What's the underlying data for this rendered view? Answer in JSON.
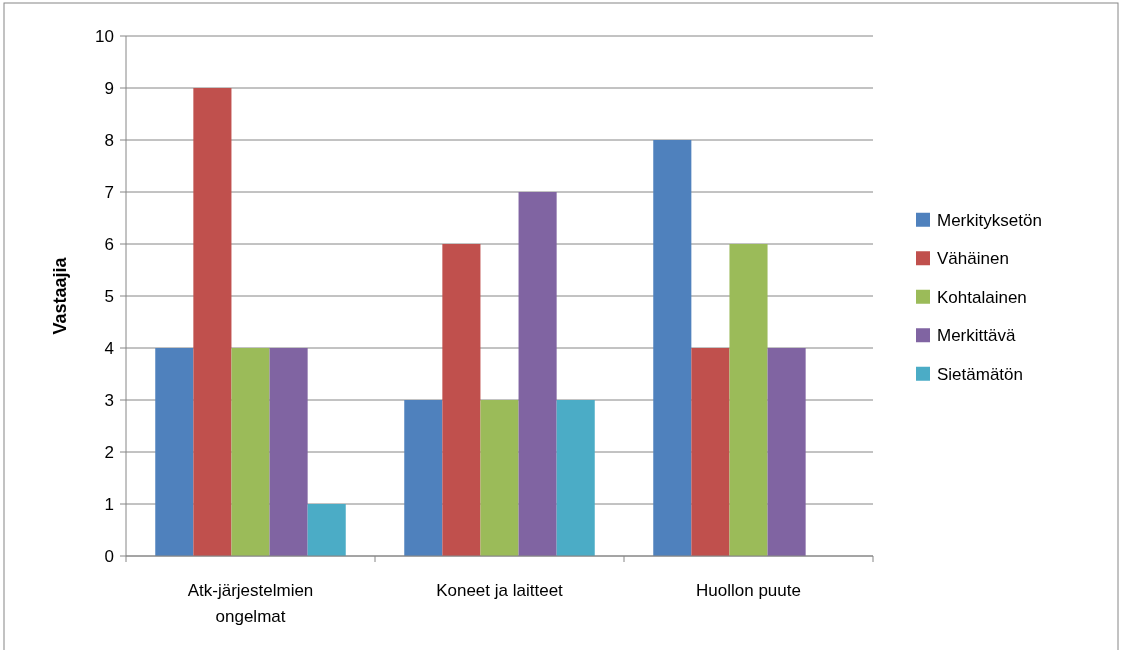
{
  "chart_data": {
    "type": "bar",
    "ylabel": "Vastaajia",
    "categories": [
      "Atk-järjestelmien ongelmat",
      "Koneet ja laitteet",
      "Huollon puute"
    ],
    "series": [
      {
        "name": "Merkityksetön",
        "color": "#4f81bd",
        "values": [
          4,
          3,
          8
        ]
      },
      {
        "name": "Vähäinen",
        "color": "#c0504d",
        "values": [
          9,
          6,
          4
        ]
      },
      {
        "name": "Kohtalainen",
        "color": "#9bbb59",
        "values": [
          4,
          3,
          6
        ]
      },
      {
        "name": "Merkittävä",
        "color": "#8064a2",
        "values": [
          4,
          7,
          4
        ]
      },
      {
        "name": "Sietämätön",
        "color": "#4bacc6",
        "values": [
          1,
          3,
          0
        ]
      }
    ],
    "ylim": [
      0,
      10
    ],
    "yticks": [
      0,
      1,
      2,
      3,
      4,
      5,
      6,
      7,
      8,
      9,
      10
    ],
    "grid": "y",
    "legend": "right"
  }
}
